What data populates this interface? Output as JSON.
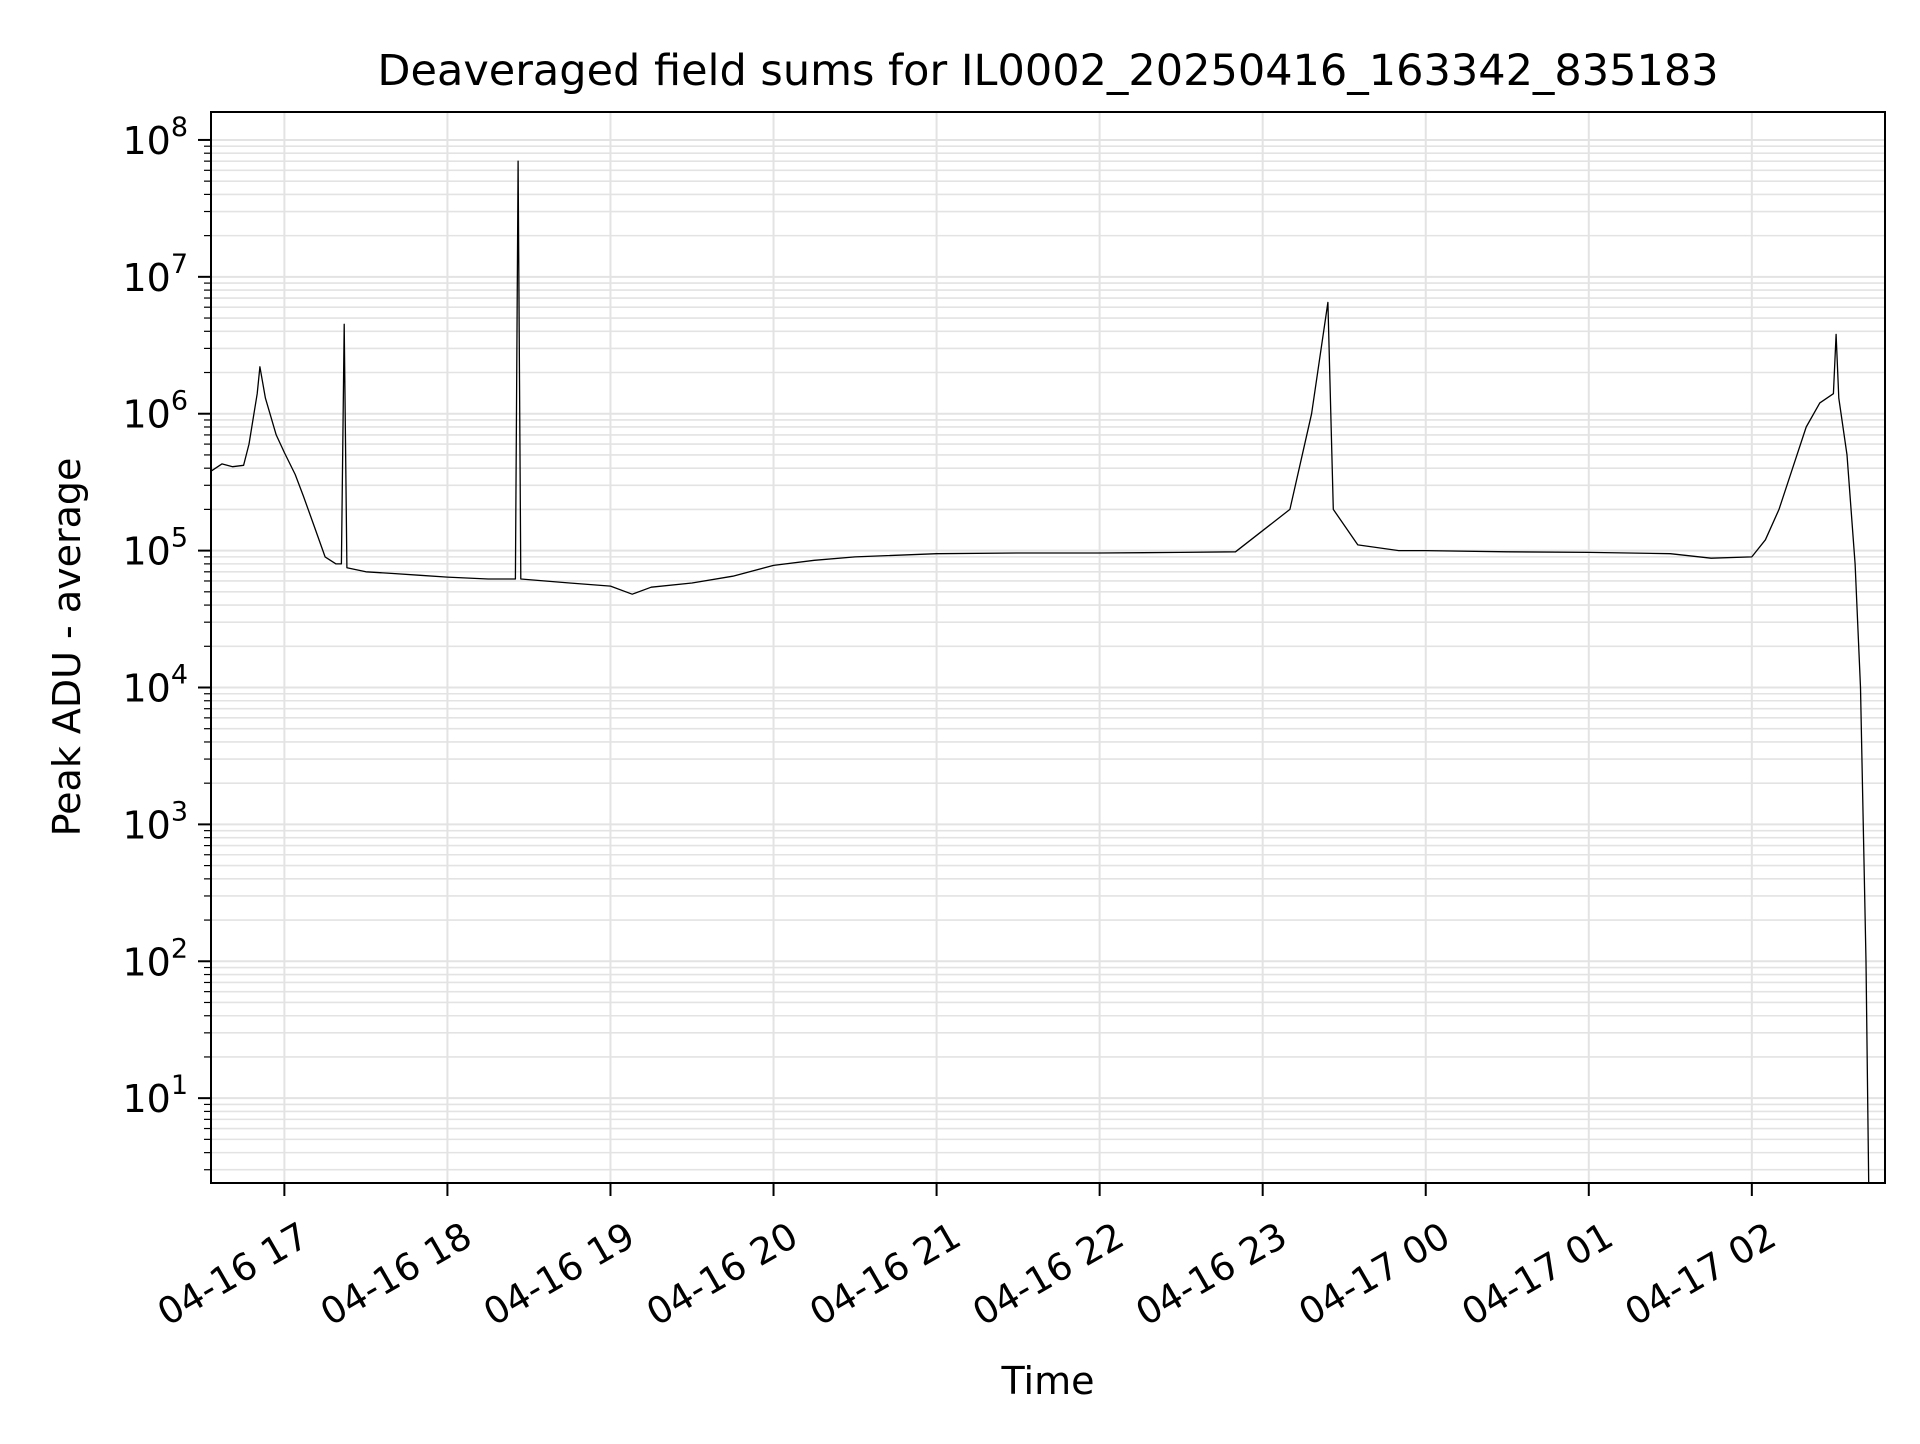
{
  "chart_data": {
    "type": "line",
    "title": "Deaveraged field sums for IL0002_20250416_163342_835183",
    "xlabel": "Time",
    "ylabel": "Peak ADU - average",
    "yscale": "log",
    "grid": true,
    "line_color": "#000000",
    "grid_color": "#e3e3e3",
    "xlim": [
      "2025-04-16 16:33",
      "2025-04-17 02:49"
    ],
    "ylim": [
      2.4,
      160000000
    ],
    "x_ticks": [
      {
        "value": "2025-04-16 17:00",
        "label": "04-16 17"
      },
      {
        "value": "2025-04-16 18:00",
        "label": "04-16 18"
      },
      {
        "value": "2025-04-16 19:00",
        "label": "04-16 19"
      },
      {
        "value": "2025-04-16 20:00",
        "label": "04-16 20"
      },
      {
        "value": "2025-04-16 21:00",
        "label": "04-16 21"
      },
      {
        "value": "2025-04-16 22:00",
        "label": "04-16 22"
      },
      {
        "value": "2025-04-16 23:00",
        "label": "04-16 23"
      },
      {
        "value": "2025-04-17 00:00",
        "label": "04-17 00"
      },
      {
        "value": "2025-04-17 01:00",
        "label": "04-17 01"
      },
      {
        "value": "2025-04-17 02:00",
        "label": "04-17 02"
      }
    ],
    "y_ticks": [
      {
        "value": 10,
        "base": "10",
        "exp": "1"
      },
      {
        "value": 100,
        "base": "10",
        "exp": "2"
      },
      {
        "value": 1000,
        "base": "10",
        "exp": "3"
      },
      {
        "value": 10000,
        "base": "10",
        "exp": "4"
      },
      {
        "value": 100000,
        "base": "10",
        "exp": "5"
      },
      {
        "value": 1000000,
        "base": "10",
        "exp": "6"
      },
      {
        "value": 10000000,
        "base": "10",
        "exp": "7"
      },
      {
        "value": 100000000,
        "base": "10",
        "exp": "8"
      }
    ],
    "series": [
      {
        "values": [
          [
            "2025-04-16 16:33",
            380000
          ],
          [
            "2025-04-16 16:37",
            430000
          ],
          [
            "2025-04-16 16:41",
            410000
          ],
          [
            "2025-04-16 16:45",
            420000
          ],
          [
            "2025-04-16 16:47",
            600000
          ],
          [
            "2025-04-16 16:50",
            1400000
          ],
          [
            "2025-04-16 16:51",
            2200000
          ],
          [
            "2025-04-16 16:53",
            1300000
          ],
          [
            "2025-04-16 16:57",
            700000
          ],
          [
            "2025-04-16 17:00",
            520000
          ],
          [
            "2025-04-16 17:04",
            360000
          ],
          [
            "2025-04-16 17:07",
            250000
          ],
          [
            "2025-04-16 17:11",
            150000
          ],
          [
            "2025-04-16 17:15",
            90000
          ],
          [
            "2025-04-16 17:19",
            80000
          ],
          [
            "2025-04-16 17:21",
            80000
          ],
          [
            "2025-04-16 17:22",
            4500000
          ],
          [
            "2025-04-16 17:23",
            75000
          ],
          [
            "2025-04-16 17:30",
            70000
          ],
          [
            "2025-04-16 17:40",
            68000
          ],
          [
            "2025-04-16 17:50",
            66000
          ],
          [
            "2025-04-16 18:00",
            64000
          ],
          [
            "2025-04-16 18:15",
            62000
          ],
          [
            "2025-04-16 18:25",
            62000
          ],
          [
            "2025-04-16 18:26",
            70000000
          ],
          [
            "2025-04-16 18:27",
            62000
          ],
          [
            "2025-04-16 18:45",
            58000
          ],
          [
            "2025-04-16 19:00",
            55000
          ],
          [
            "2025-04-16 19:08",
            48000
          ],
          [
            "2025-04-16 19:15",
            54000
          ],
          [
            "2025-04-16 19:30",
            58000
          ],
          [
            "2025-04-16 19:45",
            65000
          ],
          [
            "2025-04-16 20:00",
            78000
          ],
          [
            "2025-04-16 20:15",
            85000
          ],
          [
            "2025-04-16 20:30",
            90000
          ],
          [
            "2025-04-16 21:00",
            95000
          ],
          [
            "2025-04-16 21:30",
            96000
          ],
          [
            "2025-04-16 22:00",
            96000
          ],
          [
            "2025-04-16 22:30",
            97000
          ],
          [
            "2025-04-16 22:50",
            98000
          ],
          [
            "2025-04-16 23:10",
            200000
          ],
          [
            "2025-04-16 23:18",
            1000000
          ],
          [
            "2025-04-16 23:24",
            6500000
          ],
          [
            "2025-04-16 23:26",
            200000
          ],
          [
            "2025-04-16 23:35",
            110000
          ],
          [
            "2025-04-16 23:50",
            100000
          ],
          [
            "2025-04-17 00:00",
            100000
          ],
          [
            "2025-04-17 00:30",
            98000
          ],
          [
            "2025-04-17 01:00",
            97000
          ],
          [
            "2025-04-17 01:30",
            95000
          ],
          [
            "2025-04-17 01:45",
            88000
          ],
          [
            "2025-04-17 02:00",
            90000
          ],
          [
            "2025-04-17 02:05",
            120000
          ],
          [
            "2025-04-17 02:10",
            200000
          ],
          [
            "2025-04-17 02:15",
            400000
          ],
          [
            "2025-04-17 02:20",
            800000
          ],
          [
            "2025-04-17 02:25",
            1200000
          ],
          [
            "2025-04-17 02:30",
            1400000
          ],
          [
            "2025-04-17 02:31",
            3800000
          ],
          [
            "2025-04-17 02:32",
            1300000
          ],
          [
            "2025-04-17 02:35",
            500000
          ],
          [
            "2025-04-17 02:38",
            80000
          ],
          [
            "2025-04-17 02:40",
            10000
          ],
          [
            "2025-04-17 02:42",
            100
          ],
          [
            "2025-04-17 02:43",
            2.4
          ]
        ]
      }
    ]
  }
}
